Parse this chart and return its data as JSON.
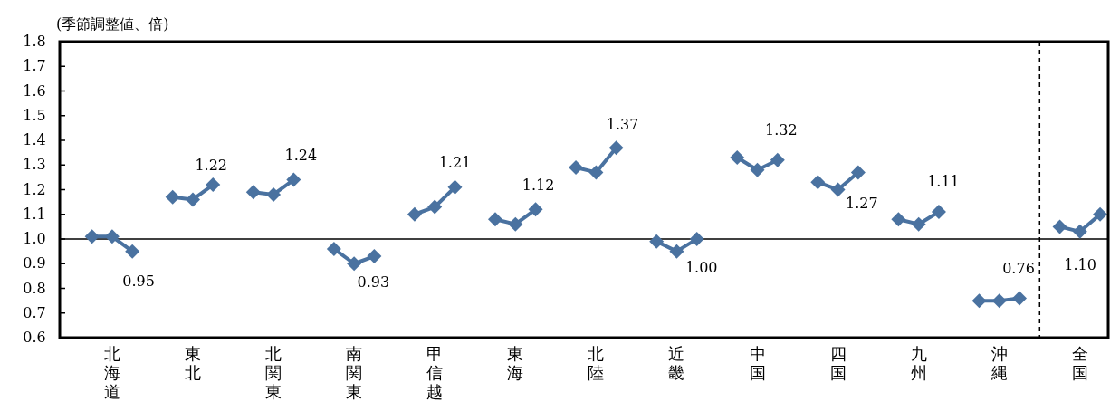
{
  "chart_data": {
    "type": "line",
    "ylabel": "(季節調整値、倍)",
    "marker": "diamond",
    "line_style": "solid",
    "grid": false,
    "categories": [
      null,
      "北海道",
      null,
      null,
      null,
      "東北",
      null,
      null,
      null,
      "北関東",
      null,
      null,
      null,
      "南関東",
      null,
      null,
      null,
      "甲信越",
      null,
      null,
      null,
      "東海",
      null,
      null,
      null,
      "北陸",
      null,
      null,
      null,
      "近畿",
      null,
      null,
      null,
      "中国",
      null,
      null,
      null,
      "四国",
      null,
      null,
      null,
      "九州",
      null,
      null,
      null,
      "沖縄",
      null,
      null,
      null,
      "全国",
      null
    ],
    "ylim": [
      0.6,
      1.8
    ],
    "yticks": [
      0.6,
      0.7,
      0.8,
      0.9,
      {
        "value": 1,
        "label": "1.0"
      },
      1.1,
      1.2,
      1.3,
      1.4,
      1.5,
      1.6,
      1.7,
      1.8
    ],
    "ref_lines": [
      {
        "axis": "y",
        "value": 1,
        "color": "#000000",
        "line_style": "solid"
      }
    ],
    "series": [
      {
        "color": "#4a72a0",
        "values": [
          1.01,
          1.01,
          0.95,
          null,
          1.17,
          1.16,
          1.22,
          null,
          1.19,
          1.18,
          1.24,
          null,
          0.96,
          0.9,
          0.93,
          null,
          1.1,
          1.13,
          1.21,
          null,
          1.08,
          1.06,
          1.12,
          null,
          1.29,
          1.27,
          1.37,
          null,
          0.99,
          0.95,
          1.0,
          null,
          1.33,
          1.28,
          1.32,
          null,
          1.23,
          1.2,
          1.27,
          null,
          1.08,
          1.06,
          1.11,
          null,
          0.75,
          0.75,
          0.76,
          null,
          1.05,
          1.03,
          1.1
        ],
        "value_labels": [
          null,
          null,
          "0.95",
          null,
          null,
          null,
          "1.22",
          null,
          null,
          null,
          "1.24",
          null,
          null,
          null,
          "0.93",
          null,
          null,
          null,
          "1.21",
          null,
          null,
          null,
          "1.12",
          null,
          null,
          null,
          "1.37",
          null,
          null,
          null,
          "1.00",
          null,
          null,
          null,
          "1.32",
          null,
          null,
          null,
          "1.27",
          null,
          null,
          null,
          "1.11",
          null,
          null,
          null,
          "0.76",
          null,
          null,
          null,
          "1.10"
        ]
      }
    ]
  }
}
